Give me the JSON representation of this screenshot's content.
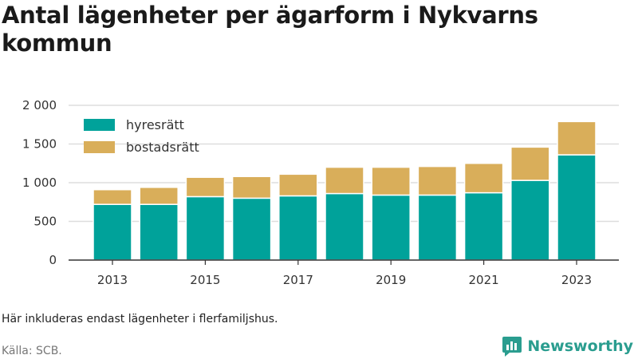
{
  "title": "Antal lägenheter per ägarform i Nykvarns kommun",
  "note": "Här inkluderas endast lägenheter i flerfamiljshus.",
  "source": "Källa: SCB.",
  "logo": {
    "text": "Newsworthy",
    "icon": "newsworthy-logo-icon"
  },
  "colors": {
    "hyresratt": "#00a29a",
    "bostadsratt": "#d9ae5a",
    "grid": "#dddddd",
    "axis": "#333333",
    "logo": "#2a9d8f"
  },
  "chart_data": {
    "type": "bar",
    "stacked": true,
    "categories": [
      2013,
      2014,
      2015,
      2016,
      2017,
      2018,
      2019,
      2020,
      2021,
      2022,
      2023
    ],
    "x_tick_labels": [
      "2013",
      "2015",
      "2017",
      "2019",
      "2021",
      "2023"
    ],
    "series": [
      {
        "name": "hyresrätt",
        "color": "#00a29a",
        "values": [
          720,
          720,
          820,
          800,
          830,
          860,
          840,
          840,
          870,
          1030,
          1360
        ]
      },
      {
        "name": "bostadsrätt",
        "color": "#d9ae5a",
        "values": [
          190,
          220,
          250,
          280,
          280,
          340,
          360,
          370,
          380,
          430,
          430
        ]
      }
    ],
    "ylim": [
      0,
      2000
    ],
    "y_ticks": [
      0,
      500,
      1000,
      1500,
      2000
    ],
    "y_tick_labels": [
      "0",
      "500",
      "1 000",
      "1 500",
      "2 000"
    ],
    "xlabel": "",
    "ylabel": "",
    "grid": true,
    "legend_position": "top-left"
  }
}
